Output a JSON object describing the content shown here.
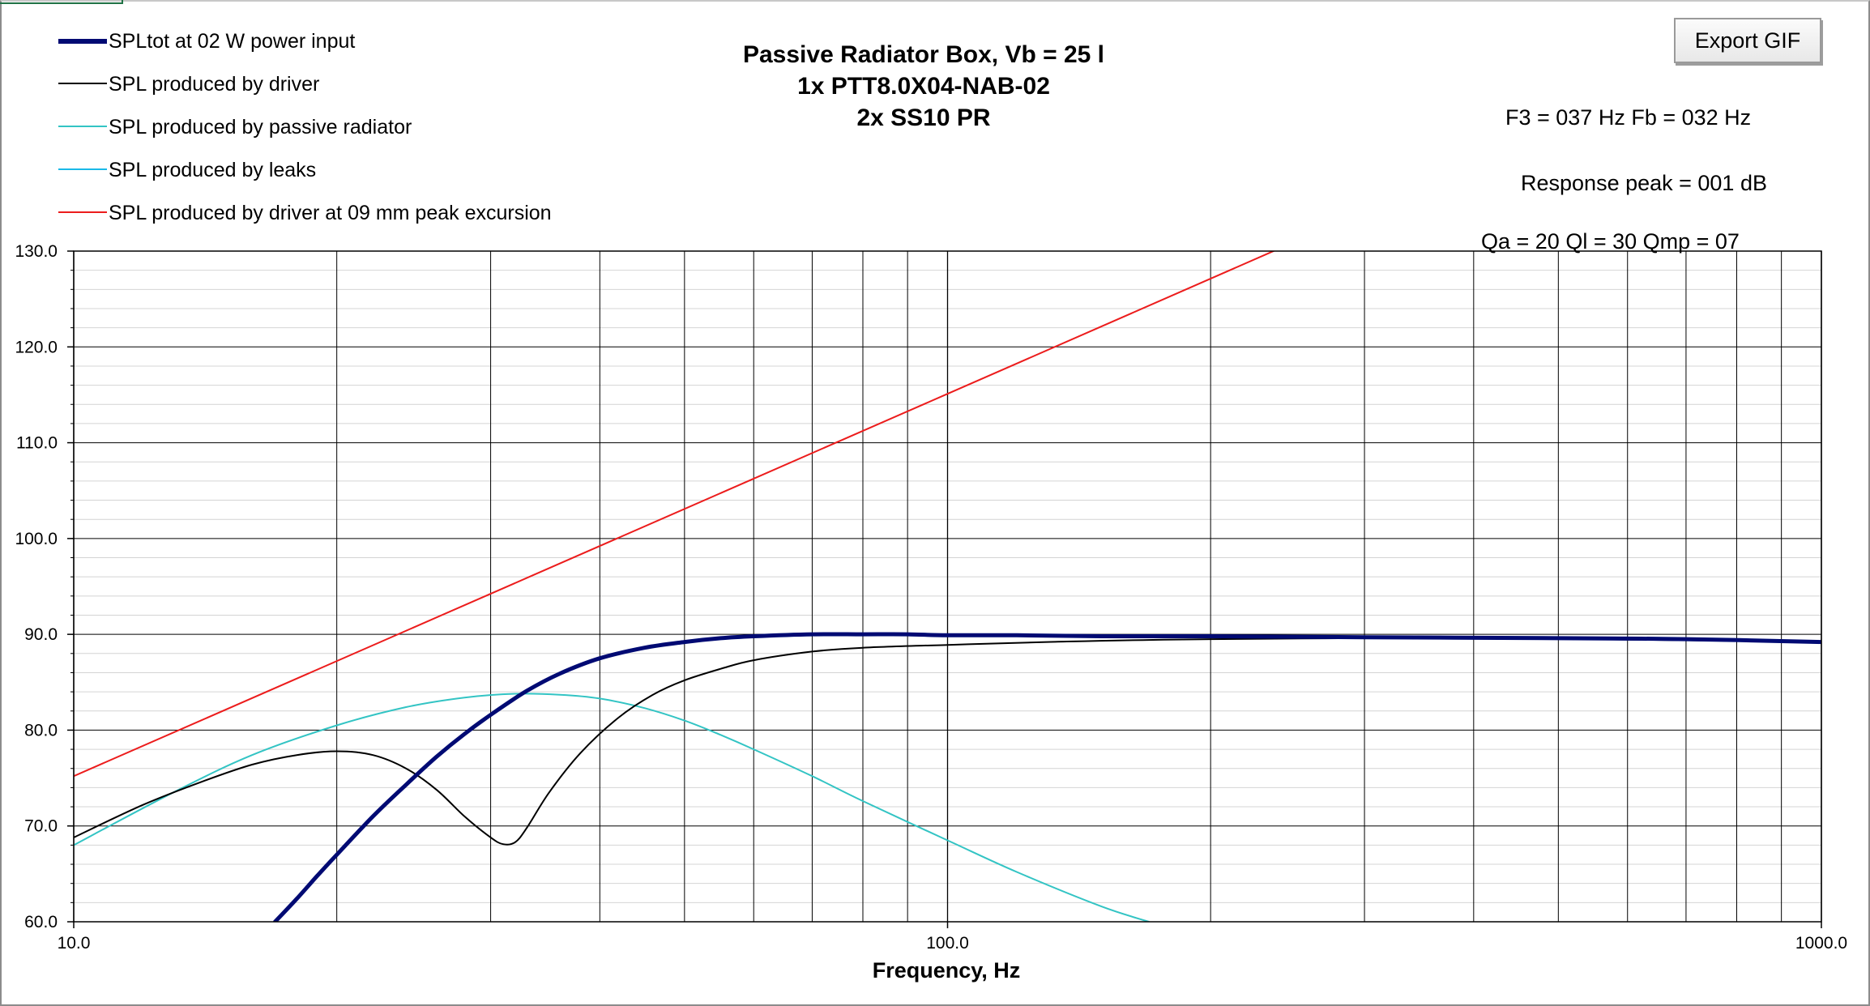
{
  "window": {
    "export_button_label": "Export GIF"
  },
  "chart_data": {
    "type": "line",
    "title": [
      "Passive Radiator Box, Vb = 25 l",
      "1x PTT8.0X04-NAB-02",
      "2x SS10 PR"
    ],
    "xlabel": "Frequency, Hz",
    "ylabel": "",
    "x_scale": "log",
    "xlim": [
      10,
      1000
    ],
    "ylim": [
      60,
      130
    ],
    "x_ticks": [
      10,
      100,
      1000
    ],
    "x_tick_labels": [
      "10.0",
      "100.0",
      "1000.0"
    ],
    "y_ticks": [
      60,
      70,
      80,
      90,
      100,
      110,
      120,
      130
    ],
    "y_tick_labels": [
      "60.0",
      "70.0",
      "80.0",
      "90.0",
      "100.0",
      "110.0",
      "120.0",
      "130.0"
    ],
    "grid": true,
    "legend_position": "top-left",
    "annotations": [
      "F3 = 037 Hz  Fb = 032 Hz",
      "Response peak = 001 dB",
      "Qa = 20  Ql = 30  Qmp = 07"
    ],
    "series": [
      {
        "name": "SPLtot at 02 W power input",
        "color": "#000a73",
        "x": [
          17.0,
          18,
          19,
          20,
          22,
          24,
          26,
          28,
          30,
          33,
          36,
          40,
          45,
          50,
          55,
          60,
          70,
          80,
          90,
          100,
          120,
          150,
          200,
          300,
          500,
          700,
          1000
        ],
        "y": [
          60.0,
          62.4,
          64.8,
          67.0,
          71.0,
          74.3,
          77.2,
          79.6,
          81.6,
          84.1,
          85.9,
          87.5,
          88.6,
          89.2,
          89.6,
          89.8,
          90.0,
          90.0,
          90.0,
          89.9,
          89.9,
          89.8,
          89.8,
          89.7,
          89.6,
          89.5,
          89.2
        ]
      },
      {
        "name": "SPL produced by driver",
        "color": "#000000",
        "x": [
          10,
          12,
          14,
          16,
          18,
          20,
          22,
          24,
          26,
          28,
          30,
          31,
          32,
          33,
          35,
          38,
          42,
          46,
          50,
          55,
          60,
          70,
          80,
          100,
          130,
          200,
          400,
          1000
        ],
        "y": [
          68.8,
          72.2,
          74.6,
          76.4,
          77.4,
          77.8,
          77.4,
          76.0,
          73.8,
          71.0,
          68.8,
          68.1,
          68.3,
          69.8,
          73.5,
          77.6,
          81.3,
          83.7,
          85.2,
          86.4,
          87.3,
          88.2,
          88.6,
          88.9,
          89.2,
          89.5,
          89.6,
          89.2
        ]
      },
      {
        "name": "SPL produced by passive radiator",
        "color": "#33c4c4",
        "x": [
          10,
          13,
          16,
          20,
          24,
          28,
          32,
          36,
          40,
          45,
          50,
          55,
          60,
          70,
          80,
          100,
          120,
          150,
          170
        ],
        "y": [
          68.0,
          73.5,
          77.4,
          80.5,
          82.4,
          83.4,
          83.8,
          83.7,
          83.3,
          82.3,
          81.0,
          79.5,
          78.0,
          75.2,
          72.6,
          68.5,
          65.2,
          61.6,
          60.0
        ]
      },
      {
        "name": "SPL produced by leaks",
        "color": "#1ab9e8",
        "x": [],
        "y": []
      },
      {
        "name": "SPL produced by driver at 09 mm peak excursion",
        "color": "#ec1c1c",
        "x": [
          10,
          100,
          250
        ],
        "y": [
          75.2,
          115.1,
          131.0
        ]
      }
    ]
  }
}
